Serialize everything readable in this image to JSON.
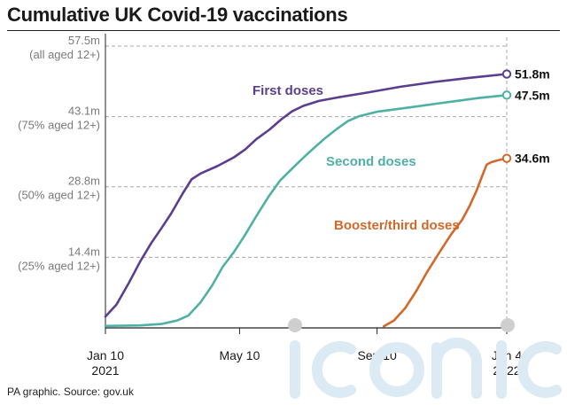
{
  "title": "Cumulative UK Covid-19 vaccinations",
  "source": "PA graphic. Source: gov.uk",
  "watermark": "iconic",
  "chart_data": {
    "type": "line",
    "title": "Cumulative UK Covid-19 vaccinations",
    "xlabel": "",
    "ylabel": "",
    "xlim": [
      "2021-01-10",
      "2022-01-04"
    ],
    "ylim": [
      0,
      57.5
    ],
    "grid": true,
    "y_ticks": [
      {
        "value": 14.4,
        "label": "14.4m",
        "sublabel": "(25% aged 12+)"
      },
      {
        "value": 28.8,
        "label": "28.8m",
        "sublabel": "(50% aged 12+)"
      },
      {
        "value": 43.1,
        "label": "43.1m",
        "sublabel": "(75% aged 12+)"
      },
      {
        "value": 57.5,
        "label": "57.5m",
        "sublabel": "(all aged 12+)"
      }
    ],
    "x_ticks": [
      {
        "date": "2021-01-10",
        "label": "Jan 10",
        "sublabel": "2021"
      },
      {
        "date": "2021-05-10",
        "label": "May 10",
        "sublabel": ""
      },
      {
        "date": "2021-09-10",
        "label": "Sep 10",
        "sublabel": ""
      },
      {
        "date": "2022-01-04",
        "label": "Jan 4",
        "sublabel": "2022"
      }
    ],
    "series": [
      {
        "name": "First doses",
        "color": "#5b3e8f",
        "end_label": "51.8m",
        "points": [
          [
            "2021-01-10",
            2.3
          ],
          [
            "2021-01-20",
            4.8
          ],
          [
            "2021-01-31",
            9.2
          ],
          [
            "2021-02-10",
            13.5
          ],
          [
            "2021-02-20",
            17.3
          ],
          [
            "2021-03-01",
            20.3
          ],
          [
            "2021-03-10",
            23.4
          ],
          [
            "2021-03-20",
            27.4
          ],
          [
            "2021-03-28",
            30.3
          ],
          [
            "2021-04-05",
            31.5
          ],
          [
            "2021-04-20",
            33.0
          ],
          [
            "2021-05-05",
            34.8
          ],
          [
            "2021-05-15",
            36.4
          ],
          [
            "2021-05-25",
            38.5
          ],
          [
            "2021-06-06",
            40.5
          ],
          [
            "2021-06-16",
            42.5
          ],
          [
            "2021-06-26",
            44.2
          ],
          [
            "2021-07-06",
            45.3
          ],
          [
            "2021-07-20",
            46.3
          ],
          [
            "2021-08-05",
            47.0
          ],
          [
            "2021-09-01",
            48.0
          ],
          [
            "2021-10-01",
            49.2
          ],
          [
            "2021-11-01",
            50.2
          ],
          [
            "2021-12-01",
            51.0
          ],
          [
            "2022-01-04",
            51.8
          ]
        ]
      },
      {
        "name": "Second doses",
        "color": "#4fb0a5",
        "end_label": "47.5m",
        "points": [
          [
            "2021-01-10",
            0.4
          ],
          [
            "2021-02-10",
            0.5
          ],
          [
            "2021-03-01",
            0.8
          ],
          [
            "2021-03-15",
            1.5
          ],
          [
            "2021-03-25",
            2.5
          ],
          [
            "2021-04-05",
            5.2
          ],
          [
            "2021-04-15",
            8.5
          ],
          [
            "2021-04-25",
            12.5
          ],
          [
            "2021-05-05",
            15.5
          ],
          [
            "2021-05-15",
            19.0
          ],
          [
            "2021-05-25",
            22.8
          ],
          [
            "2021-06-05",
            26.8
          ],
          [
            "2021-06-15",
            30.0
          ],
          [
            "2021-06-25",
            32.3
          ],
          [
            "2021-07-05",
            34.5
          ],
          [
            "2021-07-15",
            36.6
          ],
          [
            "2021-07-25",
            38.6
          ],
          [
            "2021-08-05",
            40.6
          ],
          [
            "2021-08-15",
            42.2
          ],
          [
            "2021-08-25",
            43.2
          ],
          [
            "2021-09-10",
            44.1
          ],
          [
            "2021-10-10",
            45.0
          ],
          [
            "2021-11-10",
            46.0
          ],
          [
            "2021-12-10",
            46.9
          ],
          [
            "2022-01-04",
            47.5
          ]
        ]
      },
      {
        "name": "Booster/third doses",
        "color": "#d2692a",
        "end_label": "34.6m",
        "points": [
          [
            "2021-09-16",
            0.3
          ],
          [
            "2021-09-25",
            1.5
          ],
          [
            "2021-10-05",
            4.0
          ],
          [
            "2021-10-15",
            7.5
          ],
          [
            "2021-10-25",
            11.5
          ],
          [
            "2021-11-05",
            15.5
          ],
          [
            "2021-11-15",
            19.0
          ],
          [
            "2021-11-25",
            22.0
          ],
          [
            "2021-12-02",
            25.0
          ],
          [
            "2021-12-08",
            28.0
          ],
          [
            "2021-12-13",
            31.0
          ],
          [
            "2021-12-17",
            33.3
          ],
          [
            "2021-12-21",
            33.8
          ],
          [
            "2021-12-27",
            34.2
          ],
          [
            "2022-01-04",
            34.6
          ]
        ]
      }
    ]
  }
}
